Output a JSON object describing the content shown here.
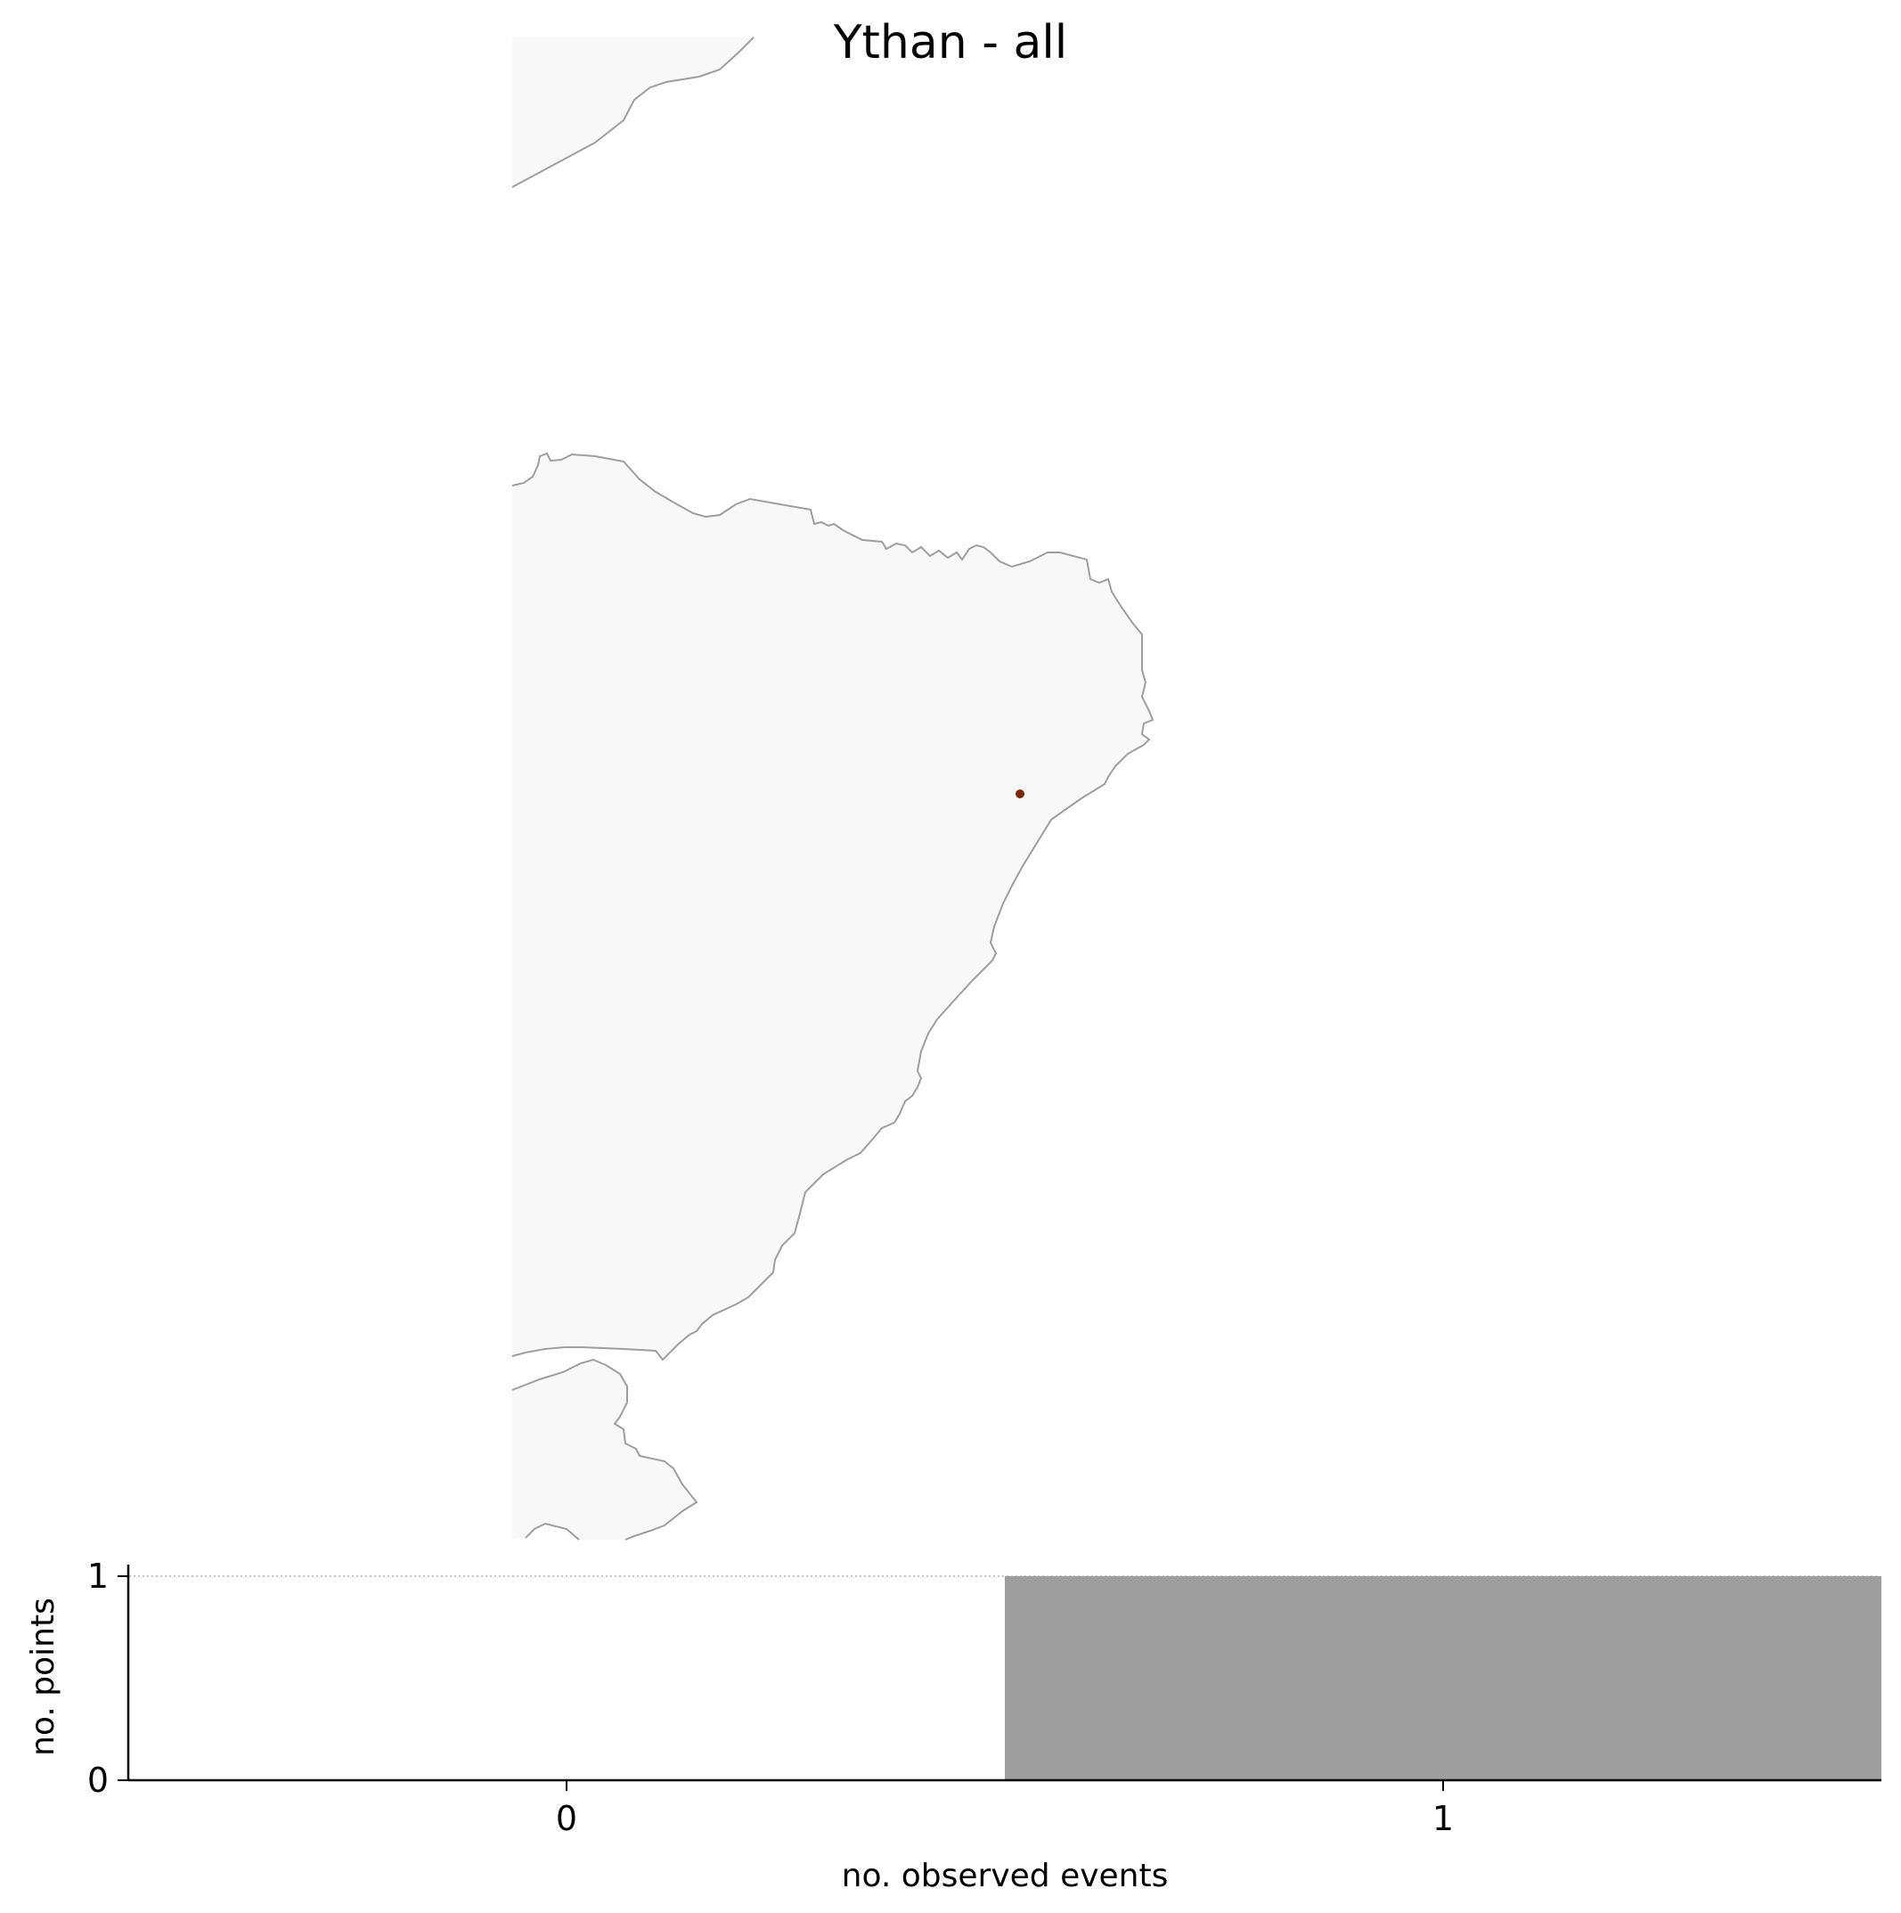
{
  "title": "Ythan - all",
  "map": {
    "land_color": "#f8f8f8",
    "coast_color": "#9e9e9e",
    "marker_color": "#7b2a0e",
    "points": [
      {
        "name": "Ythan",
        "count": 1
      }
    ]
  },
  "chart_data": {
    "type": "bar",
    "title": "Ythan - all",
    "xlabel": "no. observed events",
    "ylabel": "no. points",
    "categories": [
      "0",
      "1"
    ],
    "values": [
      0,
      1
    ],
    "xticks": [
      "0",
      "1"
    ],
    "yticks": [
      "0",
      "1"
    ],
    "ylim": [
      0,
      1
    ],
    "bar_color": "#9e9e9e",
    "grid": false
  }
}
